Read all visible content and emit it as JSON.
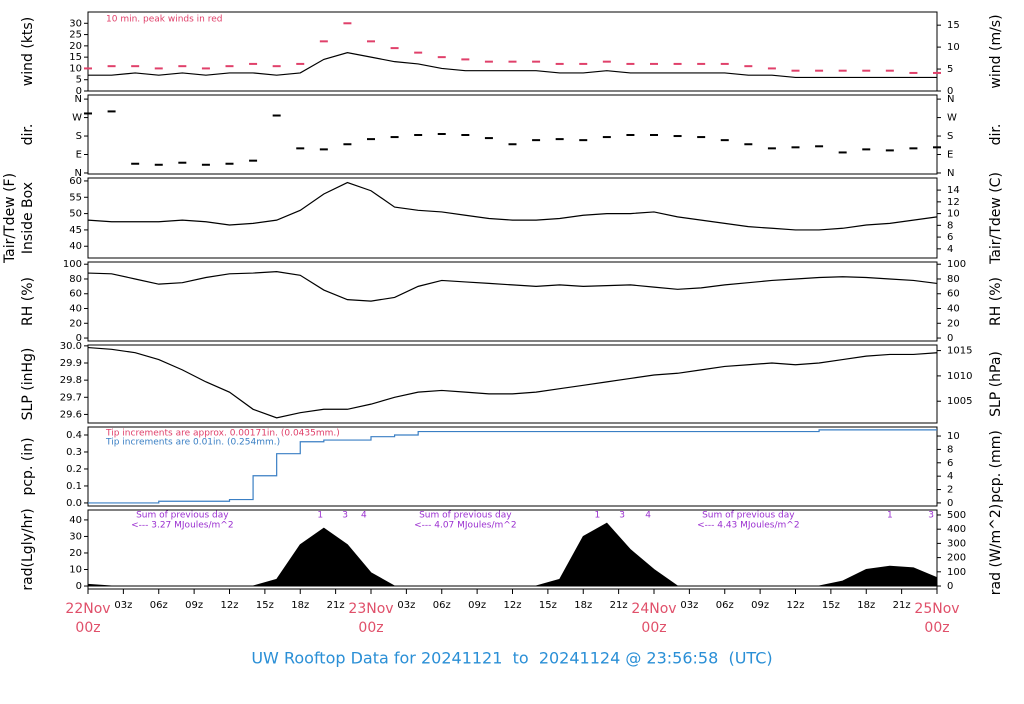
{
  "title": "UW Rooftop Data for 20241121  to  20241124 @ 23:56:58  (UTC)",
  "chart_data": [
    {
      "type": "line",
      "ylabel": "wind (kts)",
      "y2label": "wind (m/s)",
      "annotation": "10 min. peak winds in red",
      "annotation_color": "#e0406a",
      "x": [
        0,
        2,
        4,
        6,
        8,
        10,
        12,
        14,
        16,
        18,
        20,
        22,
        24,
        26,
        28,
        30,
        32,
        34,
        36,
        38,
        40,
        42,
        44,
        46,
        48,
        50,
        52,
        54,
        56,
        58,
        60,
        62,
        64,
        66,
        68,
        70,
        72
      ],
      "xlim": [
        0,
        72
      ],
      "ylim": [
        0,
        35
      ],
      "yticks": [
        0,
        5,
        10,
        15,
        20,
        25,
        30
      ],
      "y2lim": [
        0,
        18.0
      ],
      "y2ticks": [
        0,
        5,
        10,
        15
      ],
      "series": [
        {
          "name": "wind",
          "style": "line",
          "color": "#000000",
          "values": [
            7,
            7,
            8,
            7,
            8,
            7,
            8,
            8,
            7,
            8,
            14,
            17,
            15,
            13,
            12,
            10,
            9,
            9,
            9,
            9,
            8,
            8,
            9,
            8,
            8,
            8,
            8,
            8,
            7,
            7,
            6,
            6,
            6,
            6,
            6,
            6,
            6
          ]
        },
        {
          "name": "peak",
          "style": "dash",
          "color": "#e0406a",
          "values": [
            10,
            11,
            11,
            10,
            11,
            10,
            11,
            12,
            11,
            12,
            22,
            30,
            22,
            19,
            17,
            15,
            14,
            13,
            13,
            13,
            12,
            12,
            13,
            12,
            12,
            12,
            12,
            12,
            11,
            10,
            9,
            9,
            9,
            9,
            9,
            8,
            8
          ]
        }
      ]
    },
    {
      "type": "scatter",
      "ylabel": "dir.",
      "y2label": "dir.",
      "x": [
        0,
        2,
        4,
        6,
        8,
        10,
        12,
        14,
        16,
        18,
        20,
        22,
        24,
        26,
        28,
        30,
        32,
        34,
        36,
        38,
        40,
        42,
        44,
        46,
        48,
        50,
        52,
        54,
        56,
        58,
        60,
        62,
        64,
        66,
        68,
        70,
        72
      ],
      "xlim": [
        0,
        72
      ],
      "ylim": [
        -5,
        380
      ],
      "yticks": [
        {
          "value": 0,
          "label": "N"
        },
        {
          "value": 90,
          "label": "E"
        },
        {
          "value": 180,
          "label": "S"
        },
        {
          "value": 270,
          "label": "W"
        },
        {
          "value": 360,
          "label": "N"
        }
      ],
      "y2lim": [
        -5,
        380
      ],
      "y2ticks": [
        {
          "value": 0,
          "label": "N"
        },
        {
          "value": 90,
          "label": "E"
        },
        {
          "value": 180,
          "label": "S"
        },
        {
          "value": 270,
          "label": "W"
        },
        {
          "value": 360,
          "label": "N"
        }
      ],
      "series": [
        {
          "name": "direction",
          "style": "dash",
          "color": "#000000",
          "values": [
            290,
            300,
            45,
            40,
            50,
            40,
            45,
            60,
            280,
            120,
            115,
            140,
            165,
            175,
            185,
            190,
            185,
            170,
            140,
            160,
            165,
            160,
            175,
            185,
            185,
            180,
            175,
            160,
            140,
            120,
            125,
            130,
            100,
            115,
            110,
            120,
            125
          ]
        }
      ]
    },
    {
      "type": "line",
      "ylabel": [
        "Tair/Tdew (F)",
        "Inside Box"
      ],
      "y2label": "Tair/Tdew (C)",
      "x": [
        0,
        2,
        4,
        6,
        8,
        10,
        12,
        14,
        16,
        18,
        20,
        22,
        24,
        26,
        28,
        30,
        32,
        34,
        36,
        38,
        40,
        42,
        44,
        46,
        48,
        50,
        52,
        54,
        56,
        58,
        60,
        62,
        64,
        66,
        68,
        70,
        72
      ],
      "xlim": [
        0,
        72
      ],
      "ylim": [
        36.4,
        60.9
      ],
      "yticks": [
        40,
        45,
        50,
        55,
        60
      ],
      "y2lim": [
        2.44,
        16.06
      ],
      "y2ticks": [
        4,
        6,
        8,
        10,
        12,
        14
      ],
      "series": [
        {
          "name": "tair",
          "style": "line",
          "color": "#000000",
          "values": [
            48,
            47.5,
            47.5,
            47.5,
            48,
            47.5,
            46.5,
            47,
            48,
            51,
            56,
            59.5,
            57,
            52,
            51,
            50.5,
            49.5,
            48.5,
            48,
            48,
            48.5,
            49.5,
            50,
            50,
            50.5,
            49,
            48,
            47,
            46,
            45.5,
            45,
            45,
            45.5,
            46.5,
            47,
            48,
            49
          ]
        }
      ]
    },
    {
      "type": "line",
      "ylabel": "RH (%)",
      "y2label": "RH (%)",
      "x": [
        0,
        2,
        4,
        6,
        8,
        10,
        12,
        14,
        16,
        18,
        20,
        22,
        24,
        26,
        28,
        30,
        32,
        34,
        36,
        38,
        40,
        42,
        44,
        46,
        48,
        50,
        52,
        54,
        56,
        58,
        60,
        62,
        64,
        66,
        68,
        70,
        72
      ],
      "xlim": [
        0,
        72
      ],
      "ylim": [
        -4,
        103
      ],
      "yticks": [
        0,
        20,
        40,
        60,
        80,
        100
      ],
      "y2lim": [
        -4,
        103
      ],
      "y2ticks": [
        0,
        20,
        40,
        60,
        80,
        100
      ],
      "series": [
        {
          "name": "rh",
          "style": "line",
          "color": "#000000",
          "values": [
            88,
            87,
            80,
            73,
            75,
            82,
            87,
            88,
            90,
            85,
            65,
            52,
            50,
            55,
            70,
            78,
            76,
            74,
            72,
            70,
            72,
            70,
            71,
            72,
            69,
            66,
            68,
            72,
            75,
            78,
            80,
            82,
            83,
            82,
            80,
            78,
            74
          ]
        }
      ]
    },
    {
      "type": "line",
      "ylabel": "SLP (inHg)",
      "y2label": "SLP (hPa)",
      "x": [
        0,
        2,
        4,
        6,
        8,
        10,
        12,
        14,
        16,
        18,
        20,
        22,
        24,
        26,
        28,
        30,
        32,
        34,
        36,
        38,
        40,
        42,
        44,
        46,
        48,
        50,
        52,
        54,
        56,
        58,
        60,
        62,
        64,
        66,
        68,
        70,
        72
      ],
      "xlim": [
        0,
        72
      ],
      "ylim": [
        29.55,
        30.005
      ],
      "yticks": [
        29.6,
        29.7,
        29.8,
        29.9,
        {
          "value": 30,
          "label": "30.0"
        }
      ],
      "y2lim": [
        1000.7,
        1016.1
      ],
      "y2ticks": [
        1005,
        1010,
        1015
      ],
      "series": [
        {
          "name": "slp",
          "style": "line",
          "color": "#000000",
          "values": [
            29.99,
            29.98,
            29.96,
            29.92,
            29.86,
            29.79,
            29.73,
            29.63,
            29.58,
            29.61,
            29.63,
            29.63,
            29.66,
            29.7,
            29.73,
            29.74,
            29.73,
            29.72,
            29.72,
            29.73,
            29.75,
            29.77,
            29.79,
            29.81,
            29.83,
            29.84,
            29.86,
            29.88,
            29.89,
            29.9,
            29.89,
            29.9,
            29.92,
            29.94,
            29.95,
            29.95,
            29.96
          ]
        }
      ]
    },
    {
      "type": "step",
      "ylabel": "pcp. (in)",
      "y2label": "pcp. (mm)",
      "notes": [
        {
          "text": "Tip increments are approx. 0.00171in. (0.0435mm.)",
          "color": "#e0406a"
        },
        {
          "text": "Tip increments are 0.01in. (0.254mm.)",
          "color": "#3a7fc4"
        }
      ],
      "x": [
        0,
        2,
        4,
        6,
        8,
        10,
        12,
        14,
        16,
        18,
        20,
        22,
        24,
        26,
        28,
        30,
        32,
        34,
        36,
        38,
        40,
        42,
        44,
        46,
        48,
        50,
        52,
        54,
        56,
        58,
        60,
        62,
        64,
        66,
        68,
        70,
        72
      ],
      "xlim": [
        0,
        72
      ],
      "ylim": [
        -0.018,
        0.447
      ],
      "yticks": [
        {
          "value": 0,
          "label": "0.0"
        },
        0.1,
        0.2,
        0.3,
        0.4
      ],
      "y2lim": [
        -0.46,
        11.35
      ],
      "y2ticks": [
        0,
        2,
        4,
        6,
        8,
        10
      ],
      "series": [
        {
          "name": "pcp",
          "style": "step",
          "color": "#3a7fc4",
          "values": [
            0,
            0,
            0,
            0.01,
            0.01,
            0.01,
            0.02,
            0.16,
            0.29,
            0.36,
            0.37,
            0.37,
            0.39,
            0.4,
            0.42,
            0.42,
            0.42,
            0.42,
            0.42,
            0.42,
            0.42,
            0.42,
            0.42,
            0.42,
            0.42,
            0.42,
            0.42,
            0.42,
            0.42,
            0.42,
            0.42,
            0.43,
            0.43,
            0.43,
            0.43,
            0.43,
            0.43
          ]
        }
      ]
    },
    {
      "type": "area",
      "ylabel": "rad(Lgly/hr)",
      "y2label": "rad (W/m^2)",
      "notes": [
        {
          "line1": "Sum of previous day",
          "line2": "<--- 3.27 MJoules/m^2"
        },
        {
          "line1": "Sum of previous day",
          "line2": "<--- 4.07 MJoules/m^2"
        },
        {
          "line1": "Sum of previous day",
          "line2": "<--- 4.43 MJoules/m^2"
        }
      ],
      "note_color": "#9b30d0",
      "markers": [
        {
          "label": "1",
          "x": 19.7
        },
        {
          "label": "3",
          "x": 21.8
        },
        {
          "label": "4",
          "x": 23.4
        },
        {
          "label": "1",
          "x": 43.2
        },
        {
          "label": "3",
          "x": 45.3
        },
        {
          "label": "4",
          "x": 47.5
        },
        {
          "label": "1",
          "x": 68.0
        },
        {
          "label": "3",
          "x": 71.5
        }
      ],
      "x": [
        0,
        2,
        4,
        6,
        8,
        10,
        12,
        14,
        16,
        18,
        20,
        22,
        24,
        26,
        28,
        30,
        32,
        34,
        36,
        38,
        40,
        42,
        44,
        46,
        48,
        50,
        52,
        54,
        56,
        58,
        60,
        62,
        64,
        66,
        68,
        70,
        72
      ],
      "xlim": [
        0,
        72
      ],
      "ylim": [
        -1.8,
        46
      ],
      "yticks": [
        0,
        10,
        20,
        30,
        40
      ],
      "y2lim": [
        -21,
        535
      ],
      "y2ticks": [
        0,
        100,
        200,
        300,
        400,
        500
      ],
      "xticks": [
        {
          "value": 0,
          "label": "22Nov 00z"
        },
        {
          "value": 3,
          "label": "03z"
        },
        {
          "value": 6,
          "label": "06z"
        },
        {
          "value": 9,
          "label": "09z"
        },
        {
          "value": 12,
          "label": "12z"
        },
        {
          "value": 15,
          "label": "15z"
        },
        {
          "value": 18,
          "label": "18z"
        },
        {
          "value": 21,
          "label": "21z"
        },
        {
          "value": 24,
          "label": "23Nov 00z"
        },
        {
          "value": 27,
          "label": "03z"
        },
        {
          "value": 30,
          "label": "06z"
        },
        {
          "value": 33,
          "label": "09z"
        },
        {
          "value": 36,
          "label": "12z"
        },
        {
          "value": 39,
          "label": "15z"
        },
        {
          "value": 42,
          "label": "18z"
        },
        {
          "value": 45,
          "label": "21z"
        },
        {
          "value": 48,
          "label": "24Nov 00z"
        },
        {
          "value": 51,
          "label": "03z"
        },
        {
          "value": 54,
          "label": "06z"
        },
        {
          "value": 57,
          "label": "09z"
        },
        {
          "value": 60,
          "label": "12z"
        },
        {
          "value": 63,
          "label": "15z"
        },
        {
          "value": 66,
          "label": "18z"
        },
        {
          "value": 69,
          "label": "21z"
        },
        {
          "value": 72,
          "label": "25Nov 00z"
        }
      ],
      "series": [
        {
          "name": "rad",
          "style": "area",
          "color": "#000000",
          "values": [
            1,
            0,
            0,
            0,
            0,
            0,
            0,
            0,
            4,
            25,
            35,
            25,
            8,
            0,
            0,
            0,
            0,
            0,
            0,
            0,
            4,
            30,
            38,
            22,
            10,
            0,
            0,
            0,
            0,
            0,
            0,
            0,
            3,
            10,
            12,
            11,
            5
          ]
        }
      ]
    }
  ]
}
